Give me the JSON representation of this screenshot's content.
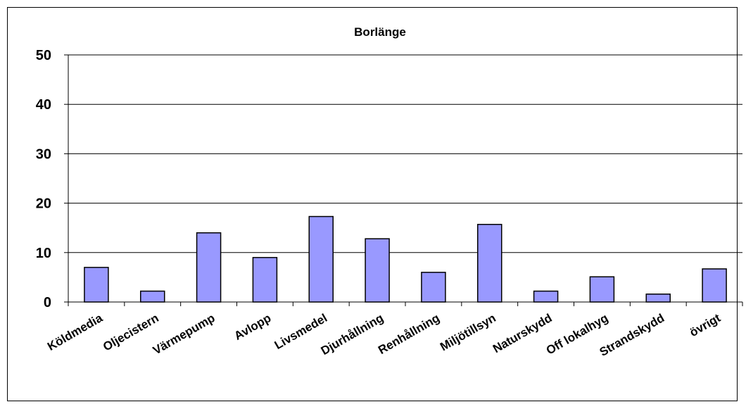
{
  "chart_data": {
    "type": "bar",
    "title": "Borlänge",
    "xlabel": "",
    "ylabel": "",
    "ylim": [
      0,
      50
    ],
    "yticks": [
      0,
      10,
      20,
      30,
      40,
      50
    ],
    "grid": true,
    "legend": "none",
    "bar_color": "#9999ff",
    "categories": [
      "Köldmedia",
      "Oljecistern",
      "Värmepump",
      "Avlopp",
      "Livsmedel",
      "Djurhållning",
      "Renhållning",
      "Miljötillsyn",
      "Naturskydd",
      "Off lokalhyg",
      "Strandskydd",
      "övrigt"
    ],
    "values": [
      7,
      2.2,
      14,
      9,
      17.3,
      12.8,
      6,
      15.7,
      2.2,
      5.1,
      1.6,
      6.7
    ]
  }
}
